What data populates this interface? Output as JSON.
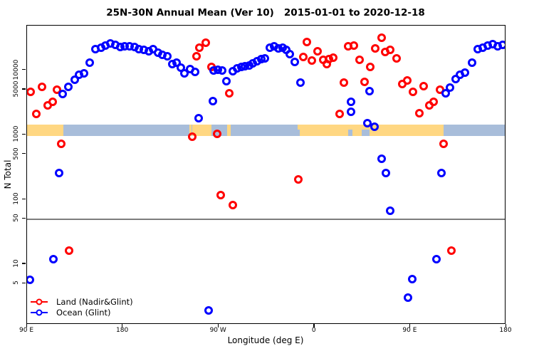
{
  "title": "25N-30N Annual Mean (Ver 10)   2015-01-01 to 2020-12-18",
  "chart_data": {
    "type": "scatter",
    "title": "25N-30N Annual Mean (Ver 10)   2015-01-01 to 2020-12-18",
    "xlabel": "Longitude (deg E)",
    "ylabel": "N Total",
    "x_axis": {
      "min": 90,
      "max": 540,
      "note": "longitude wraps: 90E through dateline to 180 again",
      "ticks": [
        {
          "value": 90,
          "label": "90 E"
        },
        {
          "value": 180,
          "label": "180"
        },
        {
          "value": 270,
          "label": "90 W"
        },
        {
          "value": 360,
          "label": "0"
        },
        {
          "value": 450,
          "label": "90 E"
        },
        {
          "value": 540,
          "label": "180"
        }
      ]
    },
    "y_axis": {
      "scale": "log",
      "min": 1.15,
      "max": 49000,
      "ticks": [
        {
          "value": 5,
          "label": "5"
        },
        {
          "value": 10,
          "label": "10"
        },
        {
          "value": 50,
          "label": "50"
        },
        {
          "value": 100,
          "label": "100"
        },
        {
          "value": 500,
          "label": "500"
        },
        {
          "value": 1000,
          "label": "1000"
        },
        {
          "value": 5000,
          "label": "5000"
        },
        {
          "value": 10000,
          "label": "10000"
        }
      ]
    },
    "reference_line": {
      "value": 50,
      "color": "#7d7d7d"
    },
    "land_ocean_band": {
      "value_top": 1450,
      "value_bottom": 960,
      "land_color": "#ffd782",
      "ocean_color": "#a8bdda",
      "segments": [
        {
          "from": 90,
          "to": 124,
          "type": "land"
        },
        {
          "from": 124,
          "to": 241,
          "type": "ocean"
        },
        {
          "from": 241,
          "to": 263.5,
          "type": "land"
        },
        {
          "from": 263.5,
          "to": 278,
          "type": "ocean"
        },
        {
          "from": 278,
          "to": 281,
          "type": "land"
        },
        {
          "from": 281,
          "to": 344,
          "type": "ocean"
        },
        {
          "from": 344,
          "to": 481,
          "type": "land"
        },
        {
          "from": 481,
          "to": 540,
          "type": "ocean"
        }
      ],
      "overlays": [
        {
          "from": 241.4,
          "to": 242.4,
          "type": "ocean",
          "part": "full"
        },
        {
          "from": 244.3,
          "to": 245.1,
          "type": "ocean",
          "part": "full"
        },
        {
          "from": 391.5,
          "to": 395.5,
          "type": "ocean",
          "part": "lower"
        },
        {
          "from": 404.5,
          "to": 411.5,
          "type": "ocean",
          "part": "lower"
        },
        {
          "from": 344.0,
          "to": 346.0,
          "type": "ocean",
          "part": "lower"
        }
      ]
    },
    "series": [
      {
        "name": "Land (Nadir&Glint)",
        "color": "#ff0000",
        "marker": "open-circle",
        "points": [
          [
            93.5,
            4680
          ],
          [
            98.5,
            2130
          ],
          [
            104,
            5560
          ],
          [
            109.5,
            2890
          ],
          [
            114,
            3270
          ],
          [
            118,
            5030
          ],
          [
            122,
            730
          ],
          [
            129.5,
            16
          ],
          [
            245,
            940
          ],
          [
            249,
            16500
          ],
          [
            252,
            22500
          ],
          [
            258,
            26800
          ],
          [
            263,
            11300
          ],
          [
            268.5,
            1040
          ],
          [
            272,
            117
          ],
          [
            280,
            4370
          ],
          [
            283,
            82
          ],
          [
            345,
            205
          ],
          [
            349.5,
            16100
          ],
          [
            353,
            27500
          ],
          [
            357.5,
            14200
          ],
          [
            363,
            19900
          ],
          [
            368,
            14600
          ],
          [
            371.5,
            12600
          ],
          [
            373.5,
            14900
          ],
          [
            377.5,
            15600
          ],
          [
            383.5,
            2080
          ],
          [
            387.5,
            6500
          ],
          [
            391.5,
            23600
          ],
          [
            397,
            24300
          ],
          [
            402.5,
            14600
          ],
          [
            407,
            6660
          ],
          [
            412.5,
            11300
          ],
          [
            417,
            22000
          ],
          [
            423,
            31600
          ],
          [
            426.5,
            19400
          ],
          [
            431,
            20900
          ],
          [
            437,
            15100
          ],
          [
            442.5,
            6100
          ],
          [
            447,
            6930
          ],
          [
            452.5,
            4680
          ],
          [
            458.5,
            2180
          ],
          [
            462.5,
            5700
          ],
          [
            468,
            2890
          ],
          [
            472,
            3270
          ],
          [
            478,
            5030
          ],
          [
            481,
            730
          ],
          [
            488.5,
            16
          ]
        ]
      },
      {
        "name": "Ocean (Glint)",
        "color": "#0000ff",
        "marker": "open-circle",
        "points": [
          [
            92.5,
            5.7
          ],
          [
            115,
            12
          ],
          [
            120,
            258
          ],
          [
            123.5,
            4320
          ],
          [
            129,
            5560
          ],
          [
            135,
            7170
          ],
          [
            139,
            8570
          ],
          [
            143.5,
            9020
          ],
          [
            149,
            13200
          ],
          [
            154,
            21400
          ],
          [
            159.5,
            22500
          ],
          [
            163.5,
            24300
          ],
          [
            168,
            26200
          ],
          [
            173,
            24900
          ],
          [
            177.5,
            23100
          ],
          [
            181.5,
            23600
          ],
          [
            186.5,
            23600
          ],
          [
            191,
            23100
          ],
          [
            195,
            21400
          ],
          [
            199.5,
            20900
          ],
          [
            204.5,
            19900
          ],
          [
            208.5,
            21400
          ],
          [
            213,
            18900
          ],
          [
            217,
            17500
          ],
          [
            222,
            16300
          ],
          [
            226.5,
            12600
          ],
          [
            230.5,
            13200
          ],
          [
            234.5,
            11000
          ],
          [
            238,
            9020
          ],
          [
            243,
            10300
          ],
          [
            248,
            9500
          ],
          [
            251,
            1790
          ],
          [
            260.5,
            1.9
          ],
          [
            264.5,
            3350
          ],
          [
            265,
            9960
          ],
          [
            269,
            10200
          ],
          [
            273,
            9960
          ],
          [
            277,
            6830
          ],
          [
            283.5,
            9730
          ],
          [
            287.5,
            10800
          ],
          [
            291.5,
            11300
          ],
          [
            294.5,
            11600
          ],
          [
            298.5,
            11900
          ],
          [
            302,
            12900
          ],
          [
            306,
            13900
          ],
          [
            310,
            14700
          ],
          [
            313.5,
            15100
          ],
          [
            318,
            22500
          ],
          [
            322,
            23600
          ],
          [
            326,
            22000
          ],
          [
            330,
            22500
          ],
          [
            333.5,
            20900
          ],
          [
            336.5,
            17900
          ],
          [
            341.5,
            13600
          ],
          [
            347,
            6500
          ],
          [
            394.5,
            3270
          ],
          [
            394.5,
            2290
          ],
          [
            409.5,
            1500
          ],
          [
            411.5,
            4800
          ],
          [
            416.5,
            1340
          ],
          [
            423,
            430
          ],
          [
            427,
            258
          ],
          [
            431,
            67
          ],
          [
            447.5,
            3
          ],
          [
            452,
            5.9
          ],
          [
            474.5,
            12
          ],
          [
            479,
            258
          ],
          [
            483,
            4370
          ],
          [
            487,
            5420
          ],
          [
            492.5,
            7360
          ],
          [
            496.5,
            8570
          ],
          [
            501,
            9230
          ],
          [
            508,
            13200
          ],
          [
            513.5,
            21400
          ],
          [
            518,
            22500
          ],
          [
            522.5,
            24300
          ],
          [
            527.5,
            25600
          ],
          [
            532,
            23600
          ],
          [
            536.5,
            24900
          ]
        ]
      }
    ],
    "legend": {
      "position": "bottom-left",
      "entries": [
        {
          "label": "Land (Nadir&Glint)",
          "color": "#ff0000"
        },
        {
          "label": "Ocean (Glint)",
          "color": "#0000ff"
        }
      ]
    }
  }
}
